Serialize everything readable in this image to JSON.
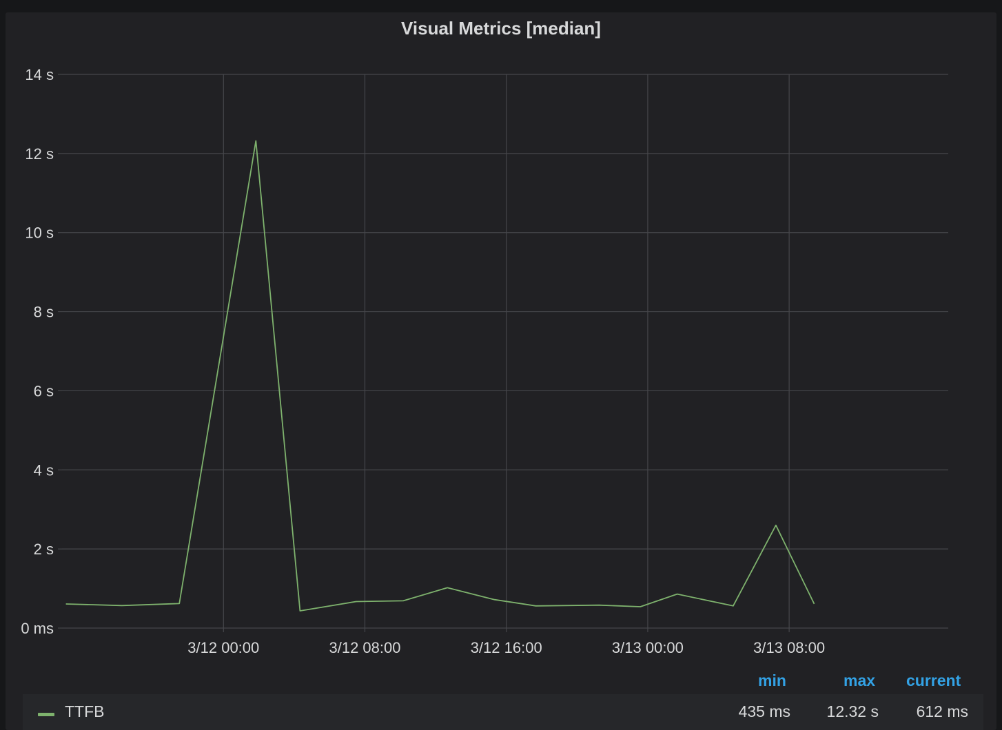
{
  "panel": {
    "title": "Visual Metrics [median]"
  },
  "colors": {
    "background": "#161719",
    "panel": "#212124",
    "grid": "#46474b",
    "text": "#d8d9da",
    "legend_header": "#33a2e5",
    "series": "#7eb26d"
  },
  "legend": {
    "headers": {
      "min": "min",
      "max": "max",
      "current": "current"
    },
    "series": [
      {
        "name": "TTFB",
        "min": "435 ms",
        "max": "12.32 s",
        "current": "612 ms"
      }
    ]
  },
  "chart_data": {
    "type": "line",
    "title": "Visual Metrics [median]",
    "xlabel": "",
    "ylabel": "",
    "y_unit": "s",
    "ylim": [
      0,
      14
    ],
    "y_ticks": [
      {
        "value": 0,
        "label": "0 ms"
      },
      {
        "value": 2,
        "label": "2 s"
      },
      {
        "value": 4,
        "label": "4 s"
      },
      {
        "value": 6,
        "label": "6 s"
      },
      {
        "value": 8,
        "label": "8 s"
      },
      {
        "value": 10,
        "label": "10 s"
      },
      {
        "value": 12,
        "label": "12 s"
      },
      {
        "value": 14,
        "label": "14 s"
      }
    ],
    "xlim": [
      "3/11 14:52",
      "3/13 17:00"
    ],
    "x_ticks": [
      {
        "value": "3/12 00:00",
        "label": "3/12 00:00"
      },
      {
        "value": "3/12 08:00",
        "label": "3/12 08:00"
      },
      {
        "value": "3/12 16:00",
        "label": "3/12 16:00"
      },
      {
        "value": "3/13 00:00",
        "label": "3/13 00:00"
      },
      {
        "value": "3/13 08:00",
        "label": "3/13 08:00"
      }
    ],
    "grid": true,
    "legend_position": "bottom",
    "series": [
      {
        "name": "TTFB",
        "color": "#7eb26d",
        "points": [
          {
            "x": "3/11 15:05",
            "y": 0.61
          },
          {
            "x": "3/11 18:15",
            "y": 0.57
          },
          {
            "x": "3/11 21:30",
            "y": 0.62
          },
          {
            "x": "3/12 01:50",
            "y": 12.32
          },
          {
            "x": "3/12 04:20",
            "y": 0.435
          },
          {
            "x": "3/12 07:30",
            "y": 0.67
          },
          {
            "x": "3/12 10:10",
            "y": 0.69
          },
          {
            "x": "3/12 12:40",
            "y": 1.02
          },
          {
            "x": "3/12 15:20",
            "y": 0.72
          },
          {
            "x": "3/12 17:40",
            "y": 0.56
          },
          {
            "x": "3/12 21:15",
            "y": 0.58
          },
          {
            "x": "3/12 23:35",
            "y": 0.54
          },
          {
            "x": "3/13 01:40",
            "y": 0.86
          },
          {
            "x": "3/13 04:50",
            "y": 0.56
          },
          {
            "x": "3/13 07:15",
            "y": 2.6
          },
          {
            "x": "3/13 09:25",
            "y": 0.612
          }
        ]
      }
    ]
  }
}
